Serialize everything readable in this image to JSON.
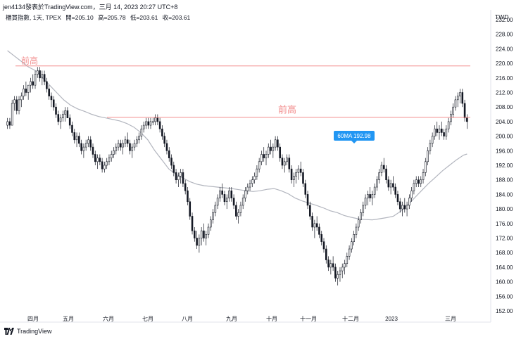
{
  "header": {
    "publish_line": "jen4134發表於TradingView.com，三月 14, 2023 20:27 UTC+8"
  },
  "symbol": {
    "name": "櫃買指數, 1天, TPEX",
    "open_label": "開=205.10",
    "high_label": "高=205.78",
    "low_label": "低=203.61",
    "close_label": "收=203.61"
  },
  "currency": "TWD",
  "brand": "TradingView",
  "colors": {
    "up": "#ffffff",
    "down": "#131722",
    "ma": "#b2b5be",
    "line": "#f28b8b",
    "label": "#f28b8b",
    "ma_label_bg": "#2196f3"
  },
  "chart_data": {
    "type": "candlestick",
    "y_axis": {
      "ticks": [
        "232.00",
        "228.00",
        "224.00",
        "220.00",
        "216.00",
        "212.00",
        "208.00",
        "204.00",
        "200.00",
        "196.00",
        "192.00",
        "188.00",
        "184.00",
        "180.00",
        "176.00",
        "172.00",
        "168.00",
        "164.00",
        "160.00",
        "156.00",
        "152.00"
      ],
      "ylim": [
        152,
        232
      ]
    },
    "x_axis": {
      "ticks": [
        "四月",
        "五月",
        "六月",
        "七月",
        "八月",
        "九月",
        "十月",
        "十一月",
        "十二月",
        "2023",
        "三月"
      ]
    },
    "annotations": [
      {
        "text": "前高",
        "level": 219.3
      },
      {
        "text": "前高",
        "level": 205.2
      }
    ],
    "ma_label": "60MA 192.98",
    "ma": [
      [
        0,
        223.5
      ],
      [
        10,
        222
      ],
      [
        20,
        220.5
      ],
      [
        30,
        219
      ],
      [
        40,
        218
      ],
      [
        50,
        216
      ],
      [
        60,
        214
      ],
      [
        70,
        212
      ],
      [
        80,
        210
      ],
      [
        90,
        208.5
      ],
      [
        100,
        207.5
      ],
      [
        110,
        206.8
      ],
      [
        120,
        206
      ],
      [
        130,
        205.4
      ],
      [
        140,
        205
      ],
      [
        150,
        204.6
      ],
      [
        160,
        204.2
      ],
      [
        170,
        203.5
      ],
      [
        180,
        202.5
      ],
      [
        190,
        201
      ],
      [
        200,
        199
      ],
      [
        210,
        196
      ],
      [
        220,
        193.5
      ],
      [
        230,
        191
      ],
      [
        240,
        189.5
      ],
      [
        250,
        188.5
      ],
      [
        260,
        187.5
      ],
      [
        270,
        186.8
      ],
      [
        280,
        186.4
      ],
      [
        290,
        186.2
      ],
      [
        300,
        186
      ],
      [
        310,
        185.8
      ],
      [
        320,
        185.6
      ],
      [
        330,
        185.3
      ],
      [
        340,
        185
      ],
      [
        350,
        184.8
      ],
      [
        360,
        185
      ],
      [
        370,
        185.4
      ],
      [
        380,
        185.6
      ],
      [
        390,
        185
      ],
      [
        400,
        184.2
      ],
      [
        410,
        183
      ],
      [
        420,
        182.2
      ],
      [
        430,
        181.6
      ],
      [
        440,
        181
      ],
      [
        450,
        180.3
      ],
      [
        460,
        179.5
      ],
      [
        470,
        179
      ],
      [
        480,
        178.2
      ],
      [
        490,
        177.7
      ],
      [
        500,
        177.3
      ],
      [
        510,
        177.1
      ],
      [
        520,
        177
      ],
      [
        530,
        177.3
      ],
      [
        540,
        177.6
      ],
      [
        550,
        178
      ],
      [
        560,
        179.3
      ],
      [
        570,
        181
      ],
      [
        580,
        183
      ],
      [
        590,
        185
      ],
      [
        600,
        187
      ],
      [
        610,
        188.7
      ],
      [
        620,
        190.5
      ],
      [
        630,
        192
      ],
      [
        640,
        193.5
      ],
      [
        650,
        194.8
      ],
      [
        655,
        195.1
      ]
    ],
    "ohlc": [
      [
        203,
        205,
        202,
        204
      ],
      [
        204,
        205,
        202,
        203
      ],
      [
        203,
        210,
        203,
        209
      ],
      [
        209,
        211,
        207,
        210
      ],
      [
        210,
        211,
        206,
        207
      ],
      [
        207,
        211,
        206,
        210
      ],
      [
        210,
        212,
        208,
        211
      ],
      [
        211,
        214,
        210,
        213
      ],
      [
        213,
        215,
        211,
        212
      ],
      [
        212,
        214,
        210,
        214
      ],
      [
        214,
        216,
        212,
        215
      ],
      [
        215,
        217,
        213,
        214
      ],
      [
        214,
        218,
        213,
        217
      ],
      [
        217,
        219,
        216,
        218
      ],
      [
        218,
        219,
        215,
        216
      ],
      [
        216,
        218,
        214,
        217
      ],
      [
        217,
        218,
        214,
        215
      ],
      [
        215,
        216,
        212,
        213
      ],
      [
        213,
        214,
        210,
        211
      ],
      [
        211,
        212,
        208,
        210
      ],
      [
        210,
        211,
        207,
        208
      ],
      [
        208,
        209,
        205,
        206
      ],
      [
        206,
        207,
        203,
        204
      ],
      [
        204,
        206,
        202,
        205
      ],
      [
        205,
        207,
        204,
        206
      ],
      [
        206,
        208,
        204,
        207
      ],
      [
        207,
        208,
        205,
        205
      ],
      [
        205,
        206,
        202,
        203
      ],
      [
        203,
        204,
        200,
        201
      ],
      [
        201,
        202,
        198,
        199
      ],
      [
        199,
        201,
        197,
        200
      ],
      [
        200,
        201,
        197,
        198
      ],
      [
        198,
        199,
        195,
        196
      ],
      [
        196,
        198,
        194,
        197
      ],
      [
        197,
        199,
        196,
        198
      ],
      [
        198,
        200,
        197,
        199
      ],
      [
        199,
        200,
        196,
        197
      ],
      [
        197,
        198,
        194,
        195
      ],
      [
        195,
        196,
        192,
        193
      ],
      [
        193,
        195,
        191,
        194
      ],
      [
        194,
        195,
        192,
        193
      ],
      [
        193,
        194,
        190,
        191
      ],
      [
        191,
        193,
        190,
        192
      ],
      [
        192,
        194,
        191,
        193
      ],
      [
        193,
        195,
        192,
        194
      ],
      [
        194,
        196,
        193,
        195
      ],
      [
        195,
        197,
        194,
        196
      ],
      [
        196,
        198,
        195,
        197
      ],
      [
        197,
        199,
        196,
        198
      ],
      [
        198,
        199,
        196,
        197
      ],
      [
        197,
        199,
        195,
        198
      ],
      [
        198,
        200,
        197,
        199
      ],
      [
        199,
        201,
        197,
        198
      ],
      [
        198,
        199,
        195,
        196
      ],
      [
        196,
        198,
        194,
        197
      ],
      [
        197,
        199,
        196,
        198
      ],
      [
        198,
        200,
        197,
        199
      ],
      [
        199,
        201,
        198,
        200
      ],
      [
        200,
        203,
        199,
        202
      ],
      [
        202,
        204,
        201,
        203
      ],
      [
        203,
        205,
        202,
        204
      ],
      [
        204,
        205,
        202,
        203
      ],
      [
        203,
        205,
        202,
        204
      ],
      [
        204,
        205,
        203,
        204
      ],
      [
        204,
        206,
        203,
        205
      ],
      [
        205,
        206,
        203,
        204
      ],
      [
        204,
        205,
        201,
        202
      ],
      [
        202,
        203,
        199,
        200
      ],
      [
        200,
        201,
        197,
        198
      ],
      [
        198,
        199,
        195,
        196
      ],
      [
        196,
        197,
        193,
        194
      ],
      [
        194,
        195,
        191,
        192
      ],
      [
        192,
        193,
        189,
        190
      ],
      [
        190,
        191,
        187,
        188
      ],
      [
        188,
        190,
        186,
        189
      ],
      [
        189,
        191,
        187,
        190
      ],
      [
        190,
        191,
        186,
        187
      ],
      [
        187,
        188,
        184,
        185
      ],
      [
        185,
        186,
        181,
        182
      ],
      [
        182,
        183,
        177,
        178
      ],
      [
        178,
        179,
        173,
        174
      ],
      [
        174,
        175,
        171,
        172
      ],
      [
        172,
        174,
        169,
        170
      ],
      [
        170,
        173,
        168,
        172
      ],
      [
        172,
        175,
        170,
        174
      ],
      [
        174,
        176,
        171,
        172
      ],
      [
        172,
        174,
        170,
        173
      ],
      [
        173,
        176,
        172,
        175
      ],
      [
        175,
        178,
        174,
        177
      ],
      [
        177,
        180,
        176,
        179
      ],
      [
        179,
        182,
        178,
        181
      ],
      [
        181,
        184,
        180,
        183
      ],
      [
        183,
        186,
        182,
        185
      ],
      [
        185,
        187,
        183,
        184
      ],
      [
        184,
        185,
        181,
        182
      ],
      [
        182,
        184,
        180,
        183
      ],
      [
        183,
        186,
        182,
        185
      ],
      [
        185,
        186,
        182,
        183
      ],
      [
        183,
        184,
        180,
        181
      ],
      [
        181,
        182,
        177,
        178
      ],
      [
        178,
        180,
        176,
        179
      ],
      [
        179,
        182,
        178,
        181
      ],
      [
        181,
        184,
        180,
        183
      ],
      [
        183,
        186,
        182,
        185
      ],
      [
        185,
        187,
        184,
        186
      ],
      [
        186,
        188,
        185,
        187
      ],
      [
        187,
        189,
        186,
        188
      ],
      [
        188,
        190,
        187,
        189
      ],
      [
        189,
        192,
        188,
        191
      ],
      [
        191,
        194,
        190,
        193
      ],
      [
        193,
        196,
        192,
        195
      ],
      [
        195,
        197,
        193,
        194
      ],
      [
        194,
        196,
        192,
        195
      ],
      [
        195,
        198,
        194,
        197
      ],
      [
        197,
        199,
        195,
        196
      ],
      [
        196,
        198,
        194,
        197
      ],
      [
        197,
        200,
        196,
        199
      ],
      [
        199,
        200,
        196,
        197
      ],
      [
        197,
        198,
        193,
        194
      ],
      [
        194,
        195,
        191,
        192
      ],
      [
        192,
        194,
        190,
        193
      ],
      [
        193,
        195,
        192,
        194
      ],
      [
        194,
        195,
        190,
        191
      ],
      [
        191,
        192,
        187,
        188
      ],
      [
        188,
        190,
        186,
        189
      ],
      [
        189,
        191,
        187,
        190
      ],
      [
        190,
        192,
        188,
        191
      ],
      [
        191,
        193,
        189,
        190
      ],
      [
        190,
        191,
        186,
        187
      ],
      [
        187,
        188,
        183,
        184
      ],
      [
        184,
        185,
        180,
        181
      ],
      [
        181,
        182,
        177,
        178
      ],
      [
        178,
        179,
        174,
        175
      ],
      [
        175,
        177,
        172,
        176
      ],
      [
        176,
        178,
        174,
        175
      ],
      [
        175,
        176,
        172,
        173
      ],
      [
        173,
        174,
        170,
        171
      ],
      [
        171,
        172,
        168,
        169
      ],
      [
        169,
        170,
        165,
        166
      ],
      [
        166,
        167,
        163,
        164
      ],
      [
        164,
        166,
        162,
        165
      ],
      [
        165,
        167,
        163,
        164
      ],
      [
        164,
        165,
        160,
        161
      ],
      [
        161,
        163,
        159,
        162
      ],
      [
        162,
        164,
        160,
        163
      ],
      [
        163,
        165,
        161,
        164
      ],
      [
        164,
        166,
        162,
        165
      ],
      [
        165,
        168,
        164,
        167
      ],
      [
        167,
        170,
        166,
        169
      ],
      [
        169,
        172,
        168,
        171
      ],
      [
        171,
        174,
        170,
        173
      ],
      [
        173,
        176,
        172,
        175
      ],
      [
        175,
        178,
        174,
        177
      ],
      [
        177,
        180,
        176,
        179
      ],
      [
        179,
        182,
        178,
        181
      ],
      [
        181,
        184,
        180,
        183
      ],
      [
        183,
        185,
        181,
        184
      ],
      [
        184,
        186,
        182,
        183
      ],
      [
        183,
        185,
        181,
        184
      ],
      [
        184,
        187,
        183,
        186
      ],
      [
        186,
        189,
        185,
        188
      ],
      [
        188,
        191,
        187,
        190
      ],
      [
        190,
        193,
        189,
        192
      ],
      [
        192,
        194,
        190,
        191
      ],
      [
        191,
        192,
        187,
        188
      ],
      [
        188,
        189,
        185,
        186
      ],
      [
        186,
        188,
        184,
        187
      ],
      [
        187,
        189,
        185,
        186
      ],
      [
        186,
        187,
        183,
        184
      ],
      [
        184,
        185,
        181,
        182
      ],
      [
        182,
        183,
        179,
        180
      ],
      [
        180,
        182,
        178,
        181
      ],
      [
        181,
        183,
        179,
        180
      ],
      [
        180,
        182,
        178,
        181
      ],
      [
        181,
        184,
        180,
        183
      ],
      [
        183,
        186,
        182,
        185
      ],
      [
        185,
        188,
        184,
        187
      ],
      [
        187,
        189,
        186,
        188
      ],
      [
        188,
        189,
        186,
        187
      ],
      [
        187,
        189,
        186,
        188
      ],
      [
        188,
        191,
        187,
        190
      ],
      [
        190,
        194,
        189,
        193
      ],
      [
        193,
        197,
        192,
        196
      ],
      [
        196,
        199,
        195,
        198
      ],
      [
        198,
        201,
        197,
        200
      ],
      [
        200,
        203,
        199,
        202
      ],
      [
        202,
        204,
        200,
        201
      ],
      [
        201,
        203,
        199,
        202
      ],
      [
        202,
        204,
        200,
        201
      ],
      [
        201,
        202,
        199,
        200
      ],
      [
        200,
        203,
        199,
        202
      ],
      [
        202,
        205,
        201,
        204
      ],
      [
        204,
        207,
        203,
        206
      ],
      [
        206,
        209,
        205,
        208
      ],
      [
        208,
        211,
        207,
        210
      ],
      [
        210,
        212,
        208,
        211
      ],
      [
        211,
        213,
        209,
        212
      ],
      [
        212,
        213,
        208,
        209
      ],
      [
        209,
        210,
        204,
        205
      ],
      [
        205,
        206,
        202,
        204
      ]
    ]
  }
}
